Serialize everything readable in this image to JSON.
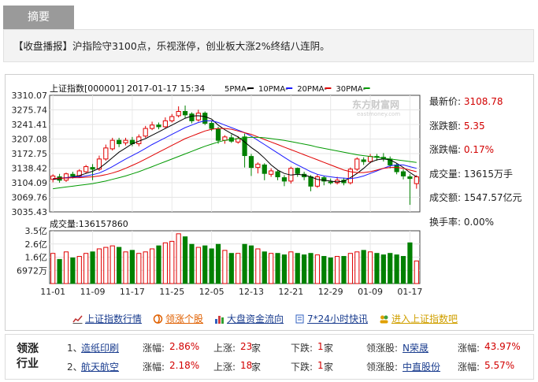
{
  "summary": {
    "tab_label": "摘要",
    "headline": "【收盘播报】沪指险守3100点，乐视涨停，创业板大涨2%终结八连阴。"
  },
  "chart_header": {
    "title": "上证指数[000001] 2017-01-17 15:34",
    "ma5": "5PMA-",
    "ma10": "10PMA-",
    "ma20": "20PMA-",
    "ma30": "30PMA-",
    "ma_colors": {
      "ma5": "#000000",
      "ma10": "#1a1aff",
      "ma20": "#e00000",
      "ma30": "#009900"
    },
    "watermark": "东方财富网",
    "watermark_sub": "eastmoney.com"
  },
  "chart_data": {
    "type": "candlestick",
    "price_ticks": [
      "3310.07",
      "3275.74",
      "3241.41",
      "3207.08",
      "3172.75",
      "3138.42",
      "3104.09",
      "3069.76",
      "3035.43"
    ],
    "ylim": [
      3035.43,
      3310.07
    ],
    "volume_label": "成交量:136157860",
    "volume_ticks": [
      "3.5亿",
      "2.6亿",
      "1.6亿",
      "6972万"
    ],
    "x_ticks": [
      "11-01",
      "11-09",
      "11-17",
      "11-25",
      "12-05",
      "12-13",
      "12-21",
      "12-29",
      "01-09",
      "01-17"
    ],
    "x_tick_index": [
      0,
      6,
      12,
      18,
      24,
      30,
      36,
      42,
      48,
      54
    ],
    "candles": [
      {
        "o": 3112,
        "c": 3120,
        "h": 3124,
        "l": 3105
      },
      {
        "o": 3118,
        "c": 3110,
        "h": 3125,
        "l": 3104
      },
      {
        "o": 3110,
        "c": 3125,
        "h": 3128,
        "l": 3106
      },
      {
        "o": 3124,
        "c": 3120,
        "h": 3130,
        "l": 3114
      },
      {
        "o": 3120,
        "c": 3132,
        "h": 3136,
        "l": 3116
      },
      {
        "o": 3130,
        "c": 3142,
        "h": 3146,
        "l": 3126
      },
      {
        "o": 3140,
        "c": 3136,
        "h": 3148,
        "l": 3110
      },
      {
        "o": 3136,
        "c": 3160,
        "h": 3168,
        "l": 3132
      },
      {
        "o": 3160,
        "c": 3186,
        "h": 3194,
        "l": 3156
      },
      {
        "o": 3184,
        "c": 3204,
        "h": 3210,
        "l": 3180
      },
      {
        "o": 3204,
        "c": 3196,
        "h": 3210,
        "l": 3188
      },
      {
        "o": 3198,
        "c": 3204,
        "h": 3210,
        "l": 3192
      },
      {
        "o": 3204,
        "c": 3196,
        "h": 3212,
        "l": 3190
      },
      {
        "o": 3196,
        "c": 3212,
        "h": 3218,
        "l": 3190
      },
      {
        "o": 3214,
        "c": 3232,
        "h": 3238,
        "l": 3210
      },
      {
        "o": 3232,
        "c": 3240,
        "h": 3248,
        "l": 3228
      },
      {
        "o": 3240,
        "c": 3236,
        "h": 3246,
        "l": 3230
      },
      {
        "o": 3236,
        "c": 3250,
        "h": 3258,
        "l": 3232
      },
      {
        "o": 3250,
        "c": 3260,
        "h": 3266,
        "l": 3246
      },
      {
        "o": 3262,
        "c": 3272,
        "h": 3284,
        "l": 3258
      },
      {
        "o": 3272,
        "c": 3264,
        "h": 3286,
        "l": 3256
      },
      {
        "o": 3266,
        "c": 3250,
        "h": 3270,
        "l": 3244
      },
      {
        "o": 3252,
        "c": 3268,
        "h": 3276,
        "l": 3248
      },
      {
        "o": 3268,
        "c": 3244,
        "h": 3272,
        "l": 3240
      },
      {
        "o": 3244,
        "c": 3232,
        "h": 3250,
        "l": 3226
      },
      {
        "o": 3230,
        "c": 3204,
        "h": 3236,
        "l": 3196
      },
      {
        "o": 3204,
        "c": 3212,
        "h": 3216,
        "l": 3196
      },
      {
        "o": 3210,
        "c": 3202,
        "h": 3218,
        "l": 3198
      },
      {
        "o": 3200,
        "c": 3208,
        "h": 3214,
        "l": 3196
      },
      {
        "o": 3212,
        "c": 3168,
        "h": 3220,
        "l": 3140
      },
      {
        "o": 3166,
        "c": 3140,
        "h": 3172,
        "l": 3120
      },
      {
        "o": 3140,
        "c": 3148,
        "h": 3152,
        "l": 3126
      },
      {
        "o": 3146,
        "c": 3126,
        "h": 3150,
        "l": 3110
      },
      {
        "o": 3124,
        "c": 3132,
        "h": 3138,
        "l": 3118
      },
      {
        "o": 3130,
        "c": 3118,
        "h": 3134,
        "l": 3110
      },
      {
        "o": 3116,
        "c": 3108,
        "h": 3122,
        "l": 3096
      },
      {
        "o": 3108,
        "c": 3138,
        "h": 3142,
        "l": 3102
      },
      {
        "o": 3138,
        "c": 3126,
        "h": 3140,
        "l": 3118
      },
      {
        "o": 3124,
        "c": 3118,
        "h": 3130,
        "l": 3110
      },
      {
        "o": 3118,
        "c": 3096,
        "h": 3122,
        "l": 3084
      },
      {
        "o": 3096,
        "c": 3118,
        "h": 3124,
        "l": 3092
      },
      {
        "o": 3116,
        "c": 3108,
        "h": 3120,
        "l": 3098
      },
      {
        "o": 3106,
        "c": 3104,
        "h": 3114,
        "l": 3100
      },
      {
        "o": 3104,
        "c": 3110,
        "h": 3118,
        "l": 3100
      },
      {
        "o": 3110,
        "c": 3104,
        "h": 3116,
        "l": 3098
      },
      {
        "o": 3104,
        "c": 3136,
        "h": 3140,
        "l": 3100
      },
      {
        "o": 3136,
        "c": 3160,
        "h": 3164,
        "l": 3132
      },
      {
        "o": 3158,
        "c": 3154,
        "h": 3164,
        "l": 3146
      },
      {
        "o": 3154,
        "c": 3166,
        "h": 3172,
        "l": 3150
      },
      {
        "o": 3166,
        "c": 3164,
        "h": 3172,
        "l": 3156
      },
      {
        "o": 3164,
        "c": 3160,
        "h": 3174,
        "l": 3154
      },
      {
        "o": 3160,
        "c": 3146,
        "h": 3166,
        "l": 3138
      },
      {
        "o": 3146,
        "c": 3130,
        "h": 3150,
        "l": 3124
      },
      {
        "o": 3130,
        "c": 3120,
        "h": 3136,
        "l": 3112
      },
      {
        "o": 3118,
        "c": 3114,
        "h": 3124,
        "l": 3052
      },
      {
        "o": 3102,
        "c": 3118,
        "h": 3122,
        "l": 3090
      }
    ],
    "ma5": [
      3112,
      3114,
      3116,
      3118,
      3121,
      3126,
      3131,
      3138,
      3150,
      3163,
      3176,
      3186,
      3196,
      3202,
      3208,
      3216,
      3224,
      3232,
      3240,
      3248,
      3256,
      3261,
      3262,
      3260,
      3254,
      3240,
      3229,
      3220,
      3212,
      3200,
      3187,
      3176,
      3162,
      3146,
      3134,
      3126,
      3122,
      3124,
      3122,
      3118,
      3112,
      3110,
      3108,
      3106,
      3108,
      3116,
      3126,
      3138,
      3152,
      3158,
      3160,
      3158,
      3150,
      3140,
      3128,
      3118
    ],
    "ma10": [
      3114,
      3115,
      3116,
      3117,
      3118,
      3120,
      3123,
      3127,
      3134,
      3142,
      3151,
      3160,
      3168,
      3176,
      3185,
      3194,
      3202,
      3210,
      3218,
      3226,
      3234,
      3240,
      3246,
      3250,
      3250,
      3246,
      3240,
      3234,
      3228,
      3222,
      3214,
      3204,
      3194,
      3184,
      3174,
      3164,
      3154,
      3146,
      3138,
      3130,
      3124,
      3120,
      3118,
      3116,
      3115,
      3114,
      3116,
      3120,
      3126,
      3132,
      3138,
      3144,
      3146,
      3146,
      3142,
      3138
    ],
    "ma20": [
      3114,
      3115,
      3115,
      3116,
      3116,
      3117,
      3118,
      3120,
      3123,
      3127,
      3132,
      3138,
      3145,
      3152,
      3160,
      3168,
      3176,
      3184,
      3192,
      3200,
      3208,
      3214,
      3220,
      3226,
      3230,
      3232,
      3232,
      3230,
      3226,
      3222,
      3218,
      3212,
      3206,
      3200,
      3194,
      3188,
      3182,
      3176,
      3170,
      3164,
      3158,
      3152,
      3146,
      3140,
      3134,
      3130,
      3128,
      3128,
      3130,
      3134,
      3138,
      3140,
      3140,
      3138,
      3134,
      3130
    ],
    "ma30": [
      3090,
      3092,
      3094,
      3096,
      3098,
      3100,
      3102,
      3105,
      3108,
      3112,
      3116,
      3120,
      3125,
      3130,
      3136,
      3142,
      3148,
      3154,
      3160,
      3166,
      3172,
      3178,
      3184,
      3190,
      3195,
      3200,
      3204,
      3206,
      3208,
      3210,
      3211,
      3211,
      3210,
      3208,
      3206,
      3204,
      3201,
      3198,
      3195,
      3192,
      3188,
      3185,
      3182,
      3179,
      3176,
      3173,
      3170,
      3168,
      3166,
      3164,
      3162,
      3160,
      3158,
      3156,
      3154,
      3152
    ],
    "volumes": [
      2.0,
      1.6,
      2.1,
      1.7,
      1.8,
      2.0,
      2.1,
      2.3,
      2.4,
      2.5,
      2.4,
      2.1,
      2.2,
      2.0,
      2.1,
      2.3,
      2.5,
      2.7,
      2.8,
      3.3,
      3.1,
      2.6,
      2.4,
      2.5,
      2.3,
      2.6,
      2.2,
      2.0,
      2.0,
      2.6,
      2.5,
      2.3,
      2.1,
      2.0,
      2.0,
      1.9,
      2.1,
      2.0,
      1.9,
      2.0,
      1.9,
      1.8,
      1.7,
      1.8,
      1.8,
      2.0,
      2.1,
      2.2,
      2.1,
      2.0,
      1.9,
      2.0,
      1.9,
      1.8,
      2.7,
      1.5
    ],
    "vol_max": 3.5
  },
  "stats": [
    {
      "label": "最新价:",
      "value": "3108.78",
      "red": true
    },
    {
      "label": "涨跌额:",
      "value": "5.35",
      "red": true
    },
    {
      "label": "涨跌幅:",
      "value": "0.17%",
      "red": true
    },
    {
      "label": "成交量:",
      "value": "13615万手",
      "red": false
    },
    {
      "label": "成交额:",
      "value": "1547.57亿元",
      "red": false
    },
    {
      "label": "换手率:",
      "value": "0.00%",
      "red": false
    }
  ],
  "links": [
    {
      "label": "上证指数行情",
      "icon": "line-chart-icon",
      "color": "#1a3d8f"
    },
    {
      "label": "领涨个股",
      "icon": "swirl-icon",
      "color": "#e06000"
    },
    {
      "label": "大盘资金流向",
      "icon": "bar-chart-icon",
      "color": "#1a3d8f"
    },
    {
      "label": "7*24小时快讯",
      "icon": "doc-icon",
      "color": "#1a3d8f"
    },
    {
      "label": "进入上证指数吧",
      "icon": "people-icon",
      "color": "#d0a000"
    }
  ],
  "industry": {
    "title": "领涨行业",
    "rows": [
      {
        "rank": "1、",
        "name": "造纸印刷",
        "change_label": "涨幅:",
        "change": "2.86%",
        "up_label": "上涨:",
        "up": "23",
        "up_unit": "家",
        "down_label": "下跌:",
        "down": "1",
        "down_unit": "家",
        "lead_label": "领涨股:",
        "lead": "N荣晟",
        "lead_change_label": "涨幅:",
        "lead_change": "43.97%"
      },
      {
        "rank": "2、",
        "name": "航天航空",
        "change_label": "涨幅:",
        "change": "2.18%",
        "up_label": "上涨:",
        "up": "18",
        "up_unit": "家",
        "down_label": "下跌:",
        "down": "1",
        "down_unit": "家",
        "lead_label": "领涨股:",
        "lead": "中直股份",
        "lead_change_label": "涨幅:",
        "lead_change": "5.57%"
      }
    ]
  }
}
